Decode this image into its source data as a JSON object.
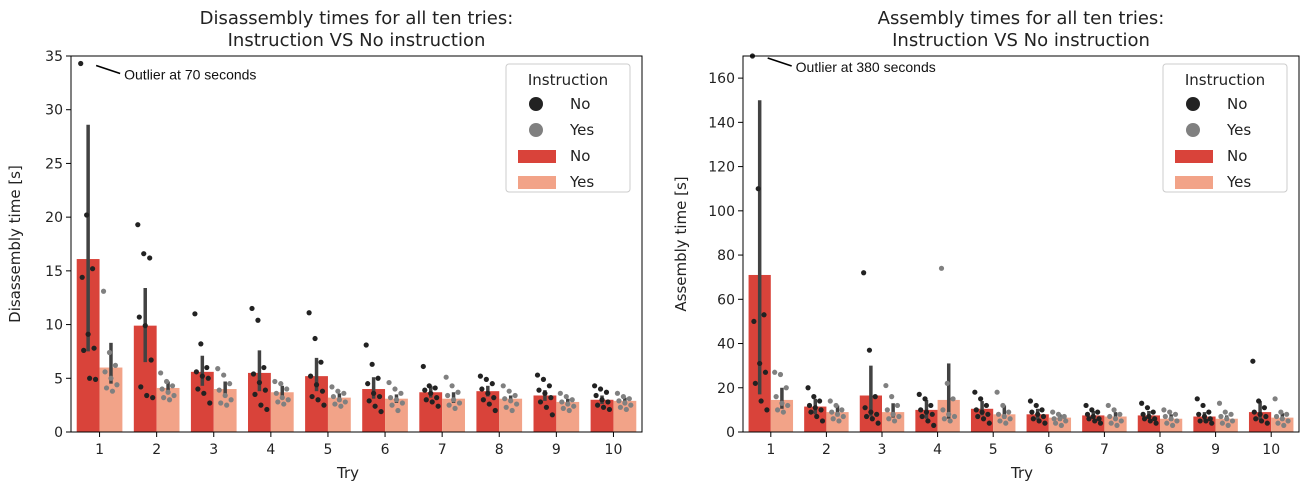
{
  "chart_data": [
    {
      "type": "bar",
      "title": "Disassembly times for all ten tries:",
      "subtitle": "Instruction VS No instruction",
      "xlabel": "Try",
      "ylabel": "Disassembly time [s]",
      "ylim": [
        0,
        35
      ],
      "yticks": [
        0,
        5,
        10,
        15,
        20,
        25,
        30,
        35
      ],
      "categories": [
        "1",
        "2",
        "3",
        "4",
        "5",
        "6",
        "7",
        "8",
        "9",
        "10"
      ],
      "legend_title": "Instruction",
      "legend_position": "top-right",
      "series": [
        {
          "name": "No",
          "color": "#d9433a",
          "values": [
            16.1,
            9.9,
            5.6,
            5.5,
            5.2,
            4.0,
            3.7,
            3.8,
            3.4,
            3.0
          ],
          "ci": [
            [
              7.5,
              28.6
            ],
            [
              6.5,
              13.4
            ],
            [
              4.3,
              7.1
            ],
            [
              3.8,
              7.6
            ],
            [
              3.8,
              6.9
            ],
            [
              3.1,
              5.1
            ],
            [
              3.2,
              4.3
            ],
            [
              3.3,
              4.3
            ],
            [
              2.9,
              3.9
            ],
            [
              2.6,
              3.4
            ]
          ]
        },
        {
          "name": "Yes",
          "color": "#f2a388",
          "values": [
            6.0,
            4.1,
            4.0,
            3.7,
            3.2,
            3.1,
            3.1,
            3.1,
            2.8,
            2.9
          ],
          "ci": [
            [
              4.5,
              8.3
            ],
            [
              3.6,
              4.7
            ],
            [
              3.4,
              4.7
            ],
            [
              3.2,
              4.3
            ],
            [
              2.8,
              3.6
            ],
            [
              2.7,
              3.5
            ],
            [
              2.7,
              3.7
            ],
            [
              2.8,
              3.4
            ],
            [
              2.5,
              3.1
            ],
            [
              2.6,
              3.2
            ]
          ]
        }
      ],
      "points": {
        "No": [
          [
            34.3,
            20.2,
            15.2,
            14.4,
            9.1,
            7.8,
            7.6,
            5.0,
            4.9
          ],
          [
            19.3,
            16.6,
            16.2,
            10.7,
            9.9,
            6.7,
            4.2,
            3.4,
            3.2
          ],
          [
            11.0,
            8.2,
            6.0,
            5.6,
            5.2,
            5.0,
            4.0,
            3.6,
            2.7
          ],
          [
            11.5,
            10.4,
            6.0,
            5.4,
            4.6,
            3.9,
            3.5,
            2.5,
            2.1
          ],
          [
            11.1,
            8.7,
            6.5,
            5.2,
            4.4,
            3.8,
            3.3,
            3.0,
            2.5
          ],
          [
            8.1,
            6.3,
            5.0,
            4.5,
            3.6,
            3.3,
            2.9,
            2.4,
            1.9
          ],
          [
            6.1,
            4.3,
            4.1,
            3.9,
            3.6,
            3.2,
            3.0,
            2.8,
            2.4
          ],
          [
            5.2,
            4.9,
            4.5,
            4.0,
            3.6,
            3.2,
            3.0,
            2.6,
            2.0
          ],
          [
            5.3,
            4.9,
            4.3,
            3.9,
            3.6,
            3.2,
            2.8,
            2.3,
            1.6
          ],
          [
            4.3,
            4.0,
            3.7,
            3.4,
            3.0,
            2.8,
            2.5,
            2.3,
            2.1
          ]
        ],
        "Yes": [
          [
            13.1,
            7.4,
            6.2,
            5.6,
            5.0,
            4.4,
            4.1,
            3.8
          ],
          [
            5.5,
            4.7,
            4.3,
            4.0,
            3.7,
            3.4,
            3.2,
            3.0
          ],
          [
            5.9,
            5.3,
            4.5,
            3.9,
            3.4,
            3.0,
            2.7,
            2.5
          ],
          [
            4.7,
            4.5,
            4.0,
            3.6,
            3.2,
            3.0,
            2.8,
            2.6
          ],
          [
            4.2,
            3.8,
            3.6,
            3.3,
            3.0,
            2.8,
            2.6,
            2.4
          ],
          [
            4.6,
            4.0,
            3.6,
            3.2,
            3.0,
            2.7,
            2.5,
            2.0
          ],
          [
            5.1,
            4.3,
            3.7,
            3.4,
            3.0,
            2.7,
            2.5,
            2.2
          ],
          [
            4.3,
            3.8,
            3.4,
            3.1,
            2.9,
            2.6,
            2.3,
            2.0
          ],
          [
            3.6,
            3.3,
            3.0,
            2.8,
            2.6,
            2.4,
            2.2,
            2.0
          ],
          [
            3.6,
            3.3,
            3.1,
            2.9,
            2.7,
            2.5,
            2.3,
            2.1
          ]
        ]
      },
      "annotation": {
        "text": "Outlier at 70 seconds",
        "category": "1",
        "y": 34.3
      }
    },
    {
      "type": "bar",
      "title": "Assembly times for all ten tries:",
      "subtitle": "Instruction VS No instruction",
      "xlabel": "Try",
      "ylabel": "Assembly time [s]",
      "ylim": [
        0,
        170
      ],
      "yticks": [
        0,
        20,
        40,
        60,
        80,
        100,
        120,
        140,
        160
      ],
      "categories": [
        "1",
        "2",
        "3",
        "4",
        "5",
        "6",
        "7",
        "8",
        "9",
        "10"
      ],
      "legend_title": "Instruction",
      "legend_position": "top-right",
      "series": [
        {
          "name": "No",
          "color": "#d9433a",
          "values": [
            71,
            11.5,
            16.5,
            10,
            10.5,
            8,
            7.5,
            7.5,
            7,
            9
          ],
          "ci": [
            [
              17,
              150
            ],
            [
              8,
              15
            ],
            [
              7,
              30
            ],
            [
              6,
              14.5
            ],
            [
              7.5,
              14
            ],
            [
              5.5,
              10.5
            ],
            [
              6,
              9.5
            ],
            [
              6,
              9.5
            ],
            [
              5.5,
              9
            ],
            [
              5.5,
              14
            ]
          ]
        },
        {
          "name": "Yes",
          "color": "#f2a388",
          "values": [
            14.5,
            9,
            9,
            14.5,
            8,
            6.5,
            7,
            6,
            6,
            6.5
          ],
          "ci": [
            [
              10.5,
              20
            ],
            [
              7,
              12
            ],
            [
              6.5,
              13
            ],
            [
              6,
              31
            ],
            [
              6,
              12
            ],
            [
              5,
              8
            ],
            [
              5.5,
              9
            ],
            [
              5,
              8
            ],
            [
              5,
              7.5
            ],
            [
              5,
              8.5
            ]
          ]
        }
      ],
      "points": {
        "No": [
          [
            170,
            110,
            53,
            50,
            31,
            27,
            22,
            14,
            10
          ],
          [
            20,
            16,
            14,
            12,
            11,
            10,
            9,
            7,
            5
          ],
          [
            72,
            37,
            16,
            11,
            9,
            8,
            7,
            6,
            4
          ],
          [
            17,
            15,
            12,
            10,
            9,
            8,
            7,
            5,
            3
          ],
          [
            18,
            15,
            12,
            10,
            9,
            8,
            7,
            6,
            4
          ],
          [
            14,
            12,
            10,
            9,
            8,
            7,
            6,
            5,
            4
          ],
          [
            12,
            10,
            9,
            8,
            7,
            6,
            6,
            5,
            4
          ],
          [
            13,
            11,
            9,
            8,
            7,
            6,
            6,
            5,
            4
          ],
          [
            15,
            12,
            9,
            8,
            7,
            6,
            5,
            5,
            4
          ],
          [
            32,
            14,
            11,
            9,
            8,
            7,
            6,
            5,
            4
          ]
        ],
        "Yes": [
          [
            27,
            26,
            20,
            16,
            13,
            12,
            10,
            9
          ],
          [
            14,
            12,
            10,
            9,
            8,
            7,
            6,
            5
          ],
          [
            21,
            16,
            12,
            10,
            8,
            7,
            6,
            5
          ],
          [
            74,
            22,
            15,
            10,
            8,
            7,
            6,
            5
          ],
          [
            18,
            12,
            9,
            8,
            7,
            6,
            5,
            4
          ],
          [
            9,
            8,
            7,
            6,
            6,
            5,
            4,
            3
          ],
          [
            12,
            10,
            8,
            7,
            6,
            5,
            4,
            3
          ],
          [
            10,
            9,
            8,
            7,
            6,
            5,
            4,
            3
          ],
          [
            13,
            9,
            8,
            7,
            6,
            5,
            4,
            3
          ],
          [
            15,
            9,
            8,
            7,
            6,
            5,
            4,
            3
          ]
        ]
      },
      "annotation": {
        "text": "Outlier at 380 seconds",
        "category": "1",
        "y": 170
      }
    }
  ]
}
